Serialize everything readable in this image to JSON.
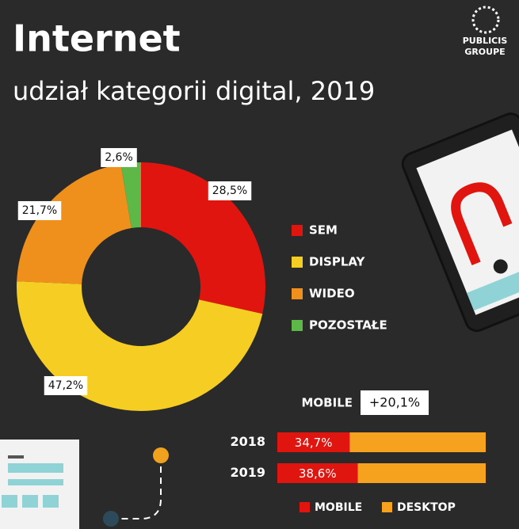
{
  "header": {
    "title": "Internet",
    "subtitle": "udział kategorii digital, 2019",
    "logo": [
      "PUBLICIS",
      "GROUPE"
    ]
  },
  "chart_data": [
    {
      "type": "pie",
      "donut": true,
      "categories": [
        "SEM",
        "DISPLAY",
        "WIDEO",
        "POZOSTAŁE"
      ],
      "values": [
        28.5,
        47.2,
        21.7,
        2.6
      ],
      "value_labels": [
        "28,5%",
        "47,2%",
        "21,7%",
        "2,6%"
      ],
      "colors": [
        "#e0150f",
        "#f5cd23",
        "#f0901c",
        "#5db848"
      ]
    },
    {
      "type": "bar",
      "orientation": "horizontal",
      "stacked": true,
      "annotation": {
        "label": "MOBILE",
        "text": "+20,1%"
      },
      "categories": [
        "2018",
        "2019"
      ],
      "xlim": [
        0,
        100
      ],
      "series": [
        {
          "name": "MOBILE",
          "color": "#e0150f",
          "values": [
            34.7,
            38.6
          ],
          "value_labels": [
            "34,7%",
            "38,6%"
          ]
        },
        {
          "name": "DESKTOP",
          "color": "#f7a21e",
          "values": [
            65.3,
            61.4
          ]
        }
      ]
    }
  ]
}
